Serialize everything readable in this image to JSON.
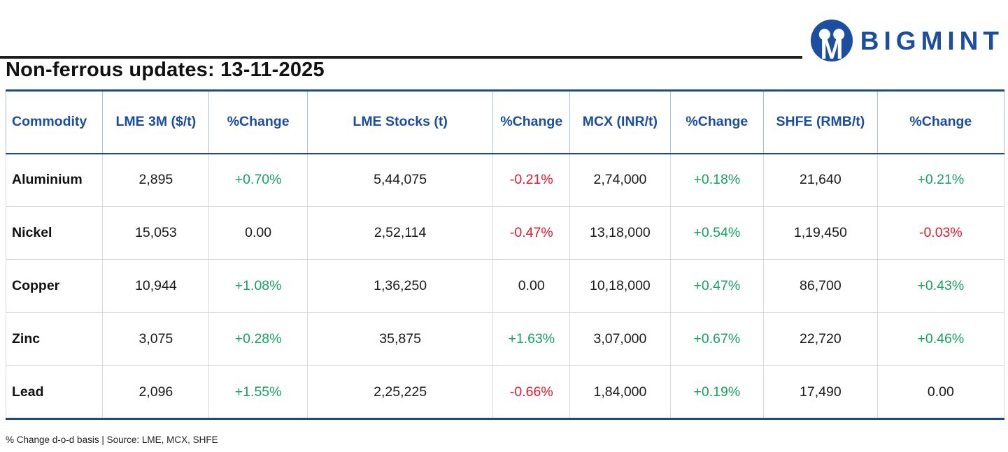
{
  "logo": {
    "brand": "BIGMINT",
    "monogram": "M"
  },
  "header": {
    "title": "Non-ferrous updates: 13-11-2025"
  },
  "footer": {
    "note": "% Change d-o-d basis | Source: LME, MCX, SHFE"
  },
  "colors": {
    "brand_blue": "#1b4da1",
    "border_navy": "#1b4c82",
    "positive_green": "#17a263",
    "negative_red": "#e4192b",
    "header_divider": "#aebfdd",
    "row_divider": "#d9d9d9"
  },
  "chart_data": {
    "type": "table",
    "title": "Non-ferrous updates: 13-11-2025",
    "columns": [
      "Commodity",
      "LME 3M ($/t)",
      "%Change",
      "LME Stocks (t)",
      "%Change",
      "MCX (INR/t)",
      "%Change",
      "SHFE (RMB/t)",
      "%Change"
    ],
    "rows": [
      {
        "commodity": "Aluminium",
        "cells": [
          {
            "v": "2,895",
            "c": "neu"
          },
          {
            "v": "+0.70%",
            "c": "pos"
          },
          {
            "v": "5,44,075",
            "c": "neu"
          },
          {
            "v": "-0.21%",
            "c": "neg"
          },
          {
            "v": "2,74,000",
            "c": "neu"
          },
          {
            "v": "+0.18%",
            "c": "pos"
          },
          {
            "v": "21,640",
            "c": "neu"
          },
          {
            "v": "+0.21%",
            "c": "pos"
          }
        ]
      },
      {
        "commodity": "Nickel",
        "cells": [
          {
            "v": "15,053",
            "c": "neu"
          },
          {
            "v": "0.00",
            "c": "neu"
          },
          {
            "v": "2,52,114",
            "c": "neu"
          },
          {
            "v": "-0.47%",
            "c": "neg"
          },
          {
            "v": "13,18,000",
            "c": "neu"
          },
          {
            "v": "+0.54%",
            "c": "pos"
          },
          {
            "v": "1,19,450",
            "c": "neu"
          },
          {
            "v": "-0.03%",
            "c": "neg"
          }
        ]
      },
      {
        "commodity": "Copper",
        "cells": [
          {
            "v": "10,944",
            "c": "neu"
          },
          {
            "v": "+1.08%",
            "c": "pos"
          },
          {
            "v": "1,36,250",
            "c": "neu"
          },
          {
            "v": "0.00",
            "c": "neu"
          },
          {
            "v": "10,18,000",
            "c": "neu"
          },
          {
            "v": "+0.47%",
            "c": "pos"
          },
          {
            "v": "86,700",
            "c": "neu"
          },
          {
            "v": "+0.43%",
            "c": "pos"
          }
        ]
      },
      {
        "commodity": "Zinc",
        "cells": [
          {
            "v": "3,075",
            "c": "neu"
          },
          {
            "v": "+0.28%",
            "c": "pos"
          },
          {
            "v": "35,875",
            "c": "neu"
          },
          {
            "v": "+1.63%",
            "c": "pos"
          },
          {
            "v": "3,07,000",
            "c": "neu"
          },
          {
            "v": "+0.67%",
            "c": "pos"
          },
          {
            "v": "22,720",
            "c": "neu"
          },
          {
            "v": "+0.46%",
            "c": "pos"
          }
        ]
      },
      {
        "commodity": "Lead",
        "cells": [
          {
            "v": "2,096",
            "c": "neu"
          },
          {
            "v": "+1.55%",
            "c": "pos"
          },
          {
            "v": "2,25,225",
            "c": "neu"
          },
          {
            "v": "-0.66%",
            "c": "neg"
          },
          {
            "v": "1,84,000",
            "c": "neu"
          },
          {
            "v": "+0.19%",
            "c": "pos"
          },
          {
            "v": "17,490",
            "c": "neu"
          },
          {
            "v": "0.00",
            "c": "neu"
          }
        ]
      }
    ]
  }
}
